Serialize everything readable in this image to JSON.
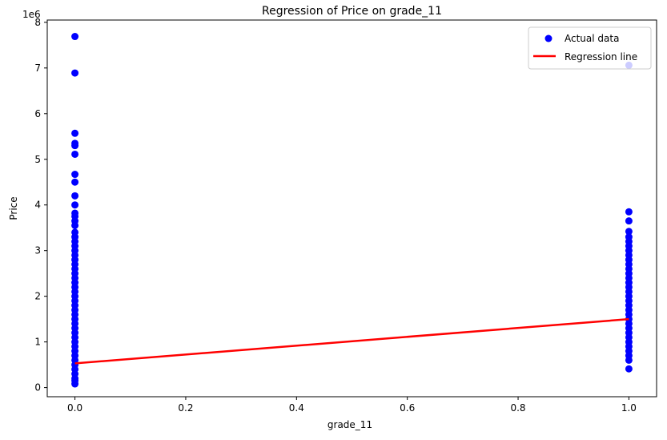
{
  "chart_data": {
    "type": "scatter",
    "title": "Regression of Price on grade_11",
    "xlabel": "grade_11",
    "ylabel": "Price",
    "offset_label": "1e6",
    "xlim": [
      -0.05,
      1.05
    ],
    "ylim": [
      -0.2,
      8.05
    ],
    "x_ticks": [
      {
        "value": 0.0,
        "label": "0.0"
      },
      {
        "value": 0.2,
        "label": "0.2"
      },
      {
        "value": 0.4,
        "label": "0.4"
      },
      {
        "value": 0.6,
        "label": "0.6"
      },
      {
        "value": 0.8,
        "label": "0.8"
      },
      {
        "value": 1.0,
        "label": "1.0"
      }
    ],
    "y_ticks": [
      {
        "value": 0,
        "label": "0"
      },
      {
        "value": 1,
        "label": "1"
      },
      {
        "value": 2,
        "label": "2"
      },
      {
        "value": 3,
        "label": "3"
      },
      {
        "value": 4,
        "label": "4"
      },
      {
        "value": 5,
        "label": "5"
      },
      {
        "value": 6,
        "label": "6"
      },
      {
        "value": 7,
        "label": "7"
      },
      {
        "value": 8,
        "label": "8"
      }
    ],
    "grid": false,
    "legend_position": "top-right",
    "series": [
      {
        "name": "Actual data",
        "kind": "scatter",
        "color": "#0000ff",
        "points": [
          [
            0,
            7.69
          ],
          [
            0,
            6.89
          ],
          [
            0,
            5.57
          ],
          [
            0,
            5.35
          ],
          [
            0,
            5.3
          ],
          [
            0,
            5.11
          ],
          [
            0,
            4.67
          ],
          [
            0,
            4.5
          ],
          [
            0,
            4.2
          ],
          [
            0,
            4.0
          ],
          [
            0,
            3.82
          ],
          [
            0,
            3.75
          ],
          [
            0,
            3.65
          ],
          [
            0,
            3.55
          ],
          [
            0,
            3.4
          ],
          [
            0,
            3.3
          ],
          [
            0,
            3.2
          ],
          [
            0,
            3.1
          ],
          [
            0,
            3.0
          ],
          [
            0,
            2.9
          ],
          [
            0,
            2.8
          ],
          [
            0,
            2.7
          ],
          [
            0,
            2.6
          ],
          [
            0,
            2.5
          ],
          [
            0,
            2.4
          ],
          [
            0,
            2.3
          ],
          [
            0,
            2.2
          ],
          [
            0,
            2.1
          ],
          [
            0,
            2.0
          ],
          [
            0,
            1.9
          ],
          [
            0,
            1.8
          ],
          [
            0,
            1.7
          ],
          [
            0,
            1.6
          ],
          [
            0,
            1.5
          ],
          [
            0,
            1.4
          ],
          [
            0,
            1.3
          ],
          [
            0,
            1.2
          ],
          [
            0,
            1.1
          ],
          [
            0,
            1.0
          ],
          [
            0,
            0.9
          ],
          [
            0,
            0.8
          ],
          [
            0,
            0.7
          ],
          [
            0,
            0.6
          ],
          [
            0,
            0.5
          ],
          [
            0,
            0.4
          ],
          [
            0,
            0.3
          ],
          [
            0,
            0.2
          ],
          [
            0,
            0.15
          ],
          [
            0,
            0.08
          ],
          [
            1,
            7.06
          ],
          [
            1,
            3.85
          ],
          [
            1,
            3.65
          ],
          [
            1,
            3.42
          ],
          [
            1,
            3.3
          ],
          [
            1,
            3.2
          ],
          [
            1,
            3.1
          ],
          [
            1,
            3.0
          ],
          [
            1,
            2.9
          ],
          [
            1,
            2.8
          ],
          [
            1,
            2.7
          ],
          [
            1,
            2.6
          ],
          [
            1,
            2.5
          ],
          [
            1,
            2.4
          ],
          [
            1,
            2.3
          ],
          [
            1,
            2.2
          ],
          [
            1,
            2.1
          ],
          [
            1,
            2.0
          ],
          [
            1,
            1.9
          ],
          [
            1,
            1.8
          ],
          [
            1,
            1.7
          ],
          [
            1,
            1.6
          ],
          [
            1,
            1.5
          ],
          [
            1,
            1.4
          ],
          [
            1,
            1.3
          ],
          [
            1,
            1.2
          ],
          [
            1,
            1.1
          ],
          [
            1,
            1.0
          ],
          [
            1,
            0.9
          ],
          [
            1,
            0.8
          ],
          [
            1,
            0.7
          ],
          [
            1,
            0.6
          ],
          [
            1,
            0.41
          ]
        ]
      },
      {
        "name": "Regression line",
        "kind": "line",
        "color": "#ff0000",
        "points": [
          [
            0,
            0.53
          ],
          [
            1,
            1.5
          ]
        ]
      }
    ]
  }
}
